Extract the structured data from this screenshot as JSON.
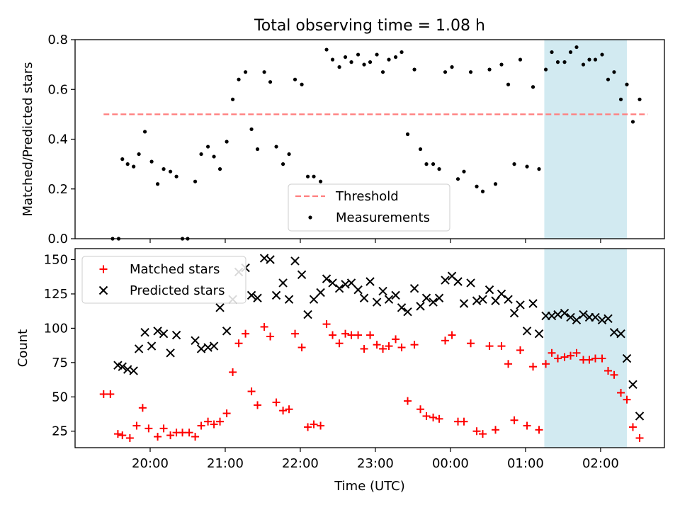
{
  "chart_data": [
    {
      "type": "scatter",
      "title": "Total observing time = 1.08 h",
      "ylabel": "Matched/Predicted stars",
      "ylim": [
        0,
        0.8
      ],
      "yticks": [
        "0.0",
        "0.2",
        "0.4",
        "0.6",
        "0.8"
      ],
      "x_unit": "hours since 19:00 UTC",
      "xlim": [
        0.68,
        2.62
      ],
      "highlight_span": {
        "x_start": 1.25,
        "x_end": 2.35,
        "color": "#add8e6"
      },
      "threshold": {
        "name": "Threshold",
        "value": 0.5,
        "x_start": 19.38,
        "x_end": 26.63,
        "color": "#ff7f7f"
      },
      "legend": {
        "location": "lower center",
        "entries": [
          "Threshold",
          "Measurements"
        ]
      },
      "series": [
        {
          "name": "Measurements",
          "color": "#000000",
          "marker": "dot",
          "points": [
            [
              19.5,
              0.0
            ],
            [
              19.58,
              0.0
            ],
            [
              19.63,
              0.32
            ],
            [
              19.7,
              0.3
            ],
            [
              19.78,
              0.29
            ],
            [
              19.85,
              0.34
            ],
            [
              19.93,
              0.43
            ],
            [
              20.02,
              0.31
            ],
            [
              20.1,
              0.22
            ],
            [
              20.18,
              0.28
            ],
            [
              20.27,
              0.27
            ],
            [
              20.35,
              0.25
            ],
            [
              20.43,
              0.0
            ],
            [
              20.5,
              0.0
            ],
            [
              20.6,
              0.23
            ],
            [
              20.68,
              0.34
            ],
            [
              20.77,
              0.37
            ],
            [
              20.85,
              0.33
            ],
            [
              20.93,
              0.28
            ],
            [
              21.02,
              0.39
            ],
            [
              21.1,
              0.56
            ],
            [
              21.18,
              0.64
            ],
            [
              21.27,
              0.67
            ],
            [
              21.35,
              0.44
            ],
            [
              21.43,
              0.36
            ],
            [
              21.52,
              0.67
            ],
            [
              21.6,
              0.63
            ],
            [
              21.68,
              0.37
            ],
            [
              21.77,
              0.3
            ],
            [
              21.85,
              0.34
            ],
            [
              21.93,
              0.64
            ],
            [
              22.02,
              0.62
            ],
            [
              22.1,
              0.25
            ],
            [
              22.18,
              0.25
            ],
            [
              22.27,
              0.23
            ],
            [
              22.35,
              0.76
            ],
            [
              22.43,
              0.72
            ],
            [
              22.52,
              0.69
            ],
            [
              22.6,
              0.73
            ],
            [
              22.68,
              0.71
            ],
            [
              22.77,
              0.74
            ],
            [
              22.85,
              0.7
            ],
            [
              22.93,
              0.71
            ],
            [
              23.02,
              0.74
            ],
            [
              23.1,
              0.67
            ],
            [
              23.18,
              0.72
            ],
            [
              23.27,
              0.73
            ],
            [
              23.35,
              0.75
            ],
            [
              23.43,
              0.42
            ],
            [
              23.52,
              0.68
            ],
            [
              23.6,
              0.36
            ],
            [
              23.68,
              0.3
            ],
            [
              23.77,
              0.3
            ],
            [
              23.85,
              0.28
            ],
            [
              23.93,
              0.67
            ],
            [
              24.02,
              0.69
            ],
            [
              24.1,
              0.24
            ],
            [
              24.18,
              0.27
            ],
            [
              24.27,
              0.67
            ],
            [
              24.35,
              0.21
            ],
            [
              24.43,
              0.19
            ],
            [
              24.52,
              0.68
            ],
            [
              24.6,
              0.22
            ],
            [
              24.68,
              0.7
            ],
            [
              24.77,
              0.62
            ],
            [
              24.85,
              0.3
            ],
            [
              24.93,
              0.72
            ],
            [
              25.02,
              0.29
            ],
            [
              25.1,
              0.61
            ],
            [
              25.18,
              0.28
            ],
            [
              25.27,
              0.68
            ],
            [
              25.35,
              0.75
            ],
            [
              25.43,
              0.71
            ],
            [
              25.52,
              0.71
            ],
            [
              25.6,
              0.75
            ],
            [
              25.68,
              0.77
            ],
            [
              25.77,
              0.7
            ],
            [
              25.85,
              0.72
            ],
            [
              25.93,
              0.72
            ],
            [
              26.02,
              0.74
            ],
            [
              26.1,
              0.64
            ],
            [
              26.18,
              0.67
            ],
            [
              26.27,
              0.56
            ],
            [
              26.35,
              0.62
            ],
            [
              26.43,
              0.47
            ],
            [
              26.52,
              0.56
            ]
          ]
        }
      ]
    },
    {
      "type": "scatter",
      "xlabel": "Time (UTC)",
      "ylabel": "Count",
      "ylim": [
        13,
        158
      ],
      "yticks": [
        "25",
        "50",
        "75",
        "100",
        "125",
        "150"
      ],
      "xticks": [
        "20:00",
        "21:00",
        "22:00",
        "23:00",
        "00:00",
        "01:00",
        "02:00"
      ],
      "highlight_span": {
        "x_start": 1.25,
        "x_end": 2.35,
        "color": "#add8e6"
      },
      "legend": {
        "location": "upper left",
        "entries": [
          "Matched stars",
          "Predicted stars"
        ]
      },
      "series": [
        {
          "name": "Matched stars",
          "color": "#ff0000",
          "marker": "plus",
          "points": [
            [
              19.38,
              52
            ],
            [
              19.47,
              52
            ],
            [
              19.57,
              23
            ],
            [
              19.63,
              22
            ],
            [
              19.73,
              20
            ],
            [
              19.82,
              29
            ],
            [
              19.9,
              42
            ],
            [
              19.98,
              27
            ],
            [
              20.1,
              21
            ],
            [
              20.18,
              27
            ],
            [
              20.27,
              22
            ],
            [
              20.35,
              24
            ],
            [
              20.43,
              24
            ],
            [
              20.52,
              24
            ],
            [
              20.6,
              21
            ],
            [
              20.68,
              29
            ],
            [
              20.77,
              32
            ],
            [
              20.85,
              30
            ],
            [
              20.93,
              32
            ],
            [
              21.02,
              38
            ],
            [
              21.1,
              68
            ],
            [
              21.18,
              89
            ],
            [
              21.27,
              96
            ],
            [
              21.35,
              54
            ],
            [
              21.43,
              44
            ],
            [
              21.52,
              101
            ],
            [
              21.6,
              94
            ],
            [
              21.68,
              46
            ],
            [
              21.77,
              40
            ],
            [
              21.85,
              41
            ],
            [
              21.93,
              96
            ],
            [
              22.02,
              86
            ],
            [
              22.1,
              28
            ],
            [
              22.18,
              30
            ],
            [
              22.27,
              29
            ],
            [
              22.35,
              103
            ],
            [
              22.43,
              95
            ],
            [
              22.52,
              89
            ],
            [
              22.6,
              96
            ],
            [
              22.68,
              95
            ],
            [
              22.77,
              95
            ],
            [
              22.85,
              85
            ],
            [
              22.93,
              95
            ],
            [
              23.02,
              88
            ],
            [
              23.1,
              85
            ],
            [
              23.18,
              87
            ],
            [
              23.27,
              92
            ],
            [
              23.35,
              86
            ],
            [
              23.43,
              47
            ],
            [
              23.52,
              88
            ],
            [
              23.6,
              41
            ],
            [
              23.68,
              36
            ],
            [
              23.77,
              35
            ],
            [
              23.85,
              34
            ],
            [
              23.93,
              91
            ],
            [
              24.02,
              95
            ],
            [
              24.1,
              32
            ],
            [
              24.18,
              32
            ],
            [
              24.27,
              89
            ],
            [
              24.35,
              25
            ],
            [
              24.43,
              23
            ],
            [
              24.52,
              87
            ],
            [
              24.6,
              26
            ],
            [
              24.68,
              87
            ],
            [
              24.77,
              74
            ],
            [
              24.85,
              33
            ],
            [
              24.93,
              84
            ],
            [
              25.02,
              29
            ],
            [
              25.1,
              72
            ],
            [
              25.18,
              26
            ],
            [
              25.27,
              74
            ],
            [
              25.35,
              82
            ],
            [
              25.43,
              78
            ],
            [
              25.52,
              79
            ],
            [
              25.6,
              80
            ],
            [
              25.68,
              82
            ],
            [
              25.77,
              77
            ],
            [
              25.85,
              77
            ],
            [
              25.93,
              78
            ],
            [
              26.02,
              78
            ],
            [
              26.1,
              69
            ],
            [
              26.18,
              66
            ],
            [
              26.27,
              53
            ],
            [
              26.35,
              48
            ],
            [
              26.43,
              28
            ],
            [
              26.52,
              20
            ]
          ]
        },
        {
          "name": "Predicted stars",
          "color": "#000000",
          "marker": "x",
          "points": [
            [
              19.57,
              73
            ],
            [
              19.63,
              72
            ],
            [
              19.7,
              70
            ],
            [
              19.78,
              69
            ],
            [
              19.85,
              85
            ],
            [
              19.93,
              97
            ],
            [
              20.02,
              87
            ],
            [
              20.1,
              98
            ],
            [
              20.18,
              96
            ],
            [
              20.27,
              82
            ],
            [
              20.35,
              95
            ],
            [
              20.6,
              91
            ],
            [
              20.68,
              85
            ],
            [
              20.77,
              86
            ],
            [
              20.85,
              87
            ],
            [
              20.93,
              115
            ],
            [
              21.02,
              98
            ],
            [
              21.1,
              121
            ],
            [
              21.18,
              141
            ],
            [
              21.27,
              144
            ],
            [
              21.35,
              124
            ],
            [
              21.43,
              122
            ],
            [
              21.52,
              151
            ],
            [
              21.6,
              150
            ],
            [
              21.68,
              124
            ],
            [
              21.77,
              133
            ],
            [
              21.85,
              121
            ],
            [
              21.93,
              149
            ],
            [
              22.02,
              139
            ],
            [
              22.1,
              110
            ],
            [
              22.18,
              121
            ],
            [
              22.27,
              126
            ],
            [
              22.35,
              136
            ],
            [
              22.43,
              133
            ],
            [
              22.52,
              129
            ],
            [
              22.6,
              132
            ],
            [
              22.68,
              133
            ],
            [
              22.77,
              128
            ],
            [
              22.85,
              122
            ],
            [
              22.93,
              134
            ],
            [
              23.02,
              119
            ],
            [
              23.1,
              127
            ],
            [
              23.18,
              121
            ],
            [
              23.27,
              124
            ],
            [
              23.35,
              115
            ],
            [
              23.43,
              112
            ],
            [
              23.52,
              129
            ],
            [
              23.6,
              116
            ],
            [
              23.68,
              122
            ],
            [
              23.77,
              119
            ],
            [
              23.85,
              122
            ],
            [
              23.93,
              135
            ],
            [
              24.02,
              138
            ],
            [
              24.1,
              134
            ],
            [
              24.18,
              118
            ],
            [
              24.27,
              133
            ],
            [
              24.35,
              120
            ],
            [
              24.43,
              121
            ],
            [
              24.52,
              128
            ],
            [
              24.6,
              120
            ],
            [
              24.68,
              125
            ],
            [
              24.77,
              121
            ],
            [
              24.85,
              111
            ],
            [
              24.93,
              117
            ],
            [
              25.02,
              98
            ],
            [
              25.1,
              118
            ],
            [
              25.18,
              96
            ],
            [
              25.27,
              109
            ],
            [
              25.35,
              109
            ],
            [
              25.43,
              110
            ],
            [
              25.52,
              111
            ],
            [
              25.6,
              108
            ],
            [
              25.68,
              106
            ],
            [
              25.77,
              110
            ],
            [
              25.85,
              108
            ],
            [
              25.93,
              108
            ],
            [
              26.02,
              106
            ],
            [
              26.1,
              107
            ],
            [
              26.18,
              97
            ],
            [
              26.27,
              96
            ],
            [
              26.35,
              78
            ],
            [
              26.43,
              59
            ],
            [
              26.52,
              36
            ]
          ]
        }
      ]
    }
  ]
}
